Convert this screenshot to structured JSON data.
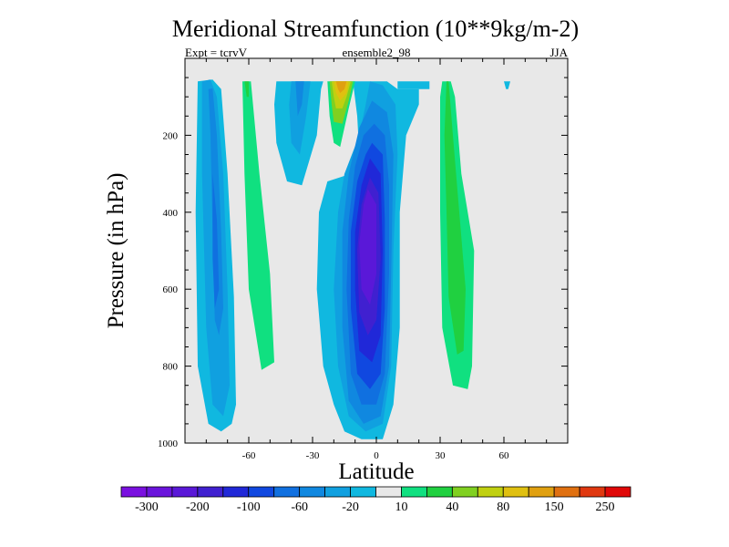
{
  "chart_data": {
    "type": "contour",
    "title": "Meridional Streamfunction (10**9kg/m-2)",
    "subtitle_left": "Expt = tcrvV",
    "subtitle_center": "ensemble2_98",
    "subtitle_right": "JJA",
    "xlabel": "Latitude",
    "ylabel": "Pressure (in hPa)",
    "xlim": [
      -90,
      90
    ],
    "ylim": [
      1000,
      0
    ],
    "x_ticks": [
      -60,
      -30,
      0,
      30,
      60
    ],
    "x_tick_labels": [
      "-60",
      "-30",
      "0",
      "30",
      "60"
    ],
    "y_ticks": [
      200,
      400,
      600,
      800,
      1000
    ],
    "y_tick_labels": [
      "200",
      "400",
      "600",
      "800",
      "1000"
    ],
    "background_color": "#e8e8e8",
    "colorbar": {
      "labels": [
        "-300",
        "-200",
        "-100",
        "-60",
        "-20",
        "10",
        "40",
        "80",
        "150",
        "250"
      ],
      "colors": [
        "#7a10e0",
        "#6a14dc",
        "#5a18d8",
        "#4020d0",
        "#2028d8",
        "#1048e0",
        "#1070e0",
        "#1088e0",
        "#10a0e0",
        "#10b8e0",
        "#e8e8e8",
        "#10e080",
        "#20d040",
        "#80d020",
        "#c0d010",
        "#e0c010",
        "#e0a010",
        "#e07010",
        "#e03810",
        "#e00808"
      ]
    },
    "cells": [
      {
        "name": "cell-south-outer",
        "level": -20,
        "color": "#10b8e0",
        "points": [
          [
            -84,
            60
          ],
          [
            -77,
            55
          ],
          [
            -73,
            80
          ],
          [
            -70,
            300
          ],
          [
            -67,
            620
          ],
          [
            -66,
            900
          ],
          [
            -68,
            950
          ],
          [
            -73,
            970
          ],
          [
            -79,
            950
          ],
          [
            -84,
            800
          ],
          [
            -85,
            400
          ]
        ]
      },
      {
        "name": "cell-south-mid",
        "level": -60,
        "color": "#10a0e0",
        "points": [
          [
            -82,
            60
          ],
          [
            -78,
            55
          ],
          [
            -75,
            100
          ],
          [
            -72,
            300
          ],
          [
            -70,
            600
          ],
          [
            -69,
            850
          ],
          [
            -72,
            930
          ],
          [
            -77,
            900
          ],
          [
            -80,
            700
          ],
          [
            -82,
            300
          ]
        ]
      },
      {
        "name": "cell-south-core",
        "level": -100,
        "color": "#1088e0",
        "points": [
          [
            -79,
            80
          ],
          [
            -77,
            78
          ],
          [
            -75,
            200
          ],
          [
            -73,
            450
          ],
          [
            -72,
            650
          ],
          [
            -74,
            720
          ],
          [
            -76,
            680
          ],
          [
            -77,
            450
          ],
          [
            -78,
            200
          ]
        ]
      },
      {
        "name": "cell-south-center",
        "level": -200,
        "color": "#1070e0",
        "points": [
          [
            -77,
            300
          ],
          [
            -75,
            420
          ],
          [
            -74,
            600
          ],
          [
            -76,
            650
          ],
          [
            -77,
            520
          ]
        ]
      },
      {
        "name": "cell-green-south",
        "level": 10,
        "color": "#10e080",
        "points": [
          [
            -63,
            60
          ],
          [
            -59,
            60
          ],
          [
            -55,
            300
          ],
          [
            -50,
            560
          ],
          [
            -48,
            790
          ],
          [
            -54,
            810
          ],
          [
            -60,
            600
          ],
          [
            -62,
            300
          ]
        ]
      },
      {
        "name": "cell-green-south-inner",
        "level": 40,
        "color": "#20d040",
        "points": [
          [
            -62,
            60
          ],
          [
            -60,
            60
          ],
          [
            -60,
            100
          ],
          [
            -61,
            100
          ]
        ]
      },
      {
        "name": "cell-mid-upper",
        "level": -20,
        "color": "#10b8e0",
        "points": [
          [
            -47,
            60
          ],
          [
            -25,
            60
          ],
          [
            -26,
            80
          ],
          [
            -28,
            200
          ],
          [
            -35,
            330
          ],
          [
            -42,
            320
          ],
          [
            -47,
            220
          ],
          [
            -48,
            120
          ]
        ]
      },
      {
        "name": "cell-mid-upper-core",
        "level": -60,
        "color": "#10a0e0",
        "points": [
          [
            -40,
            60
          ],
          [
            -31,
            60
          ],
          [
            -33,
            150
          ],
          [
            -36,
            250
          ],
          [
            -40,
            220
          ],
          [
            -41,
            120
          ]
        ]
      },
      {
        "name": "cell-mid-upper-core2",
        "level": -100,
        "color": "#1088e0",
        "points": [
          [
            -38,
            60
          ],
          [
            -34,
            60
          ],
          [
            -35,
            120
          ],
          [
            -37,
            150
          ]
        ]
      },
      {
        "name": "cell-hadley-outer",
        "level": -20,
        "color": "#10b8e0",
        "points": [
          [
            -11,
            60
          ],
          [
            5,
            60
          ],
          [
            10,
            80
          ],
          [
            20,
            80
          ],
          [
            20,
            120
          ],
          [
            14,
            200
          ],
          [
            11,
            400
          ],
          [
            11,
            700
          ],
          [
            8,
            900
          ],
          [
            3,
            990
          ],
          [
            -7,
            990
          ],
          [
            -15,
            970
          ],
          [
            -20,
            900
          ],
          [
            -25,
            800
          ],
          [
            -28,
            600
          ],
          [
            -27,
            400
          ],
          [
            -23,
            320
          ],
          [
            -12,
            300
          ],
          [
            -8,
            250
          ],
          [
            -9,
            150
          ]
        ]
      },
      {
        "name": "cell-hadley-2",
        "level": -60,
        "color": "#10a0e0",
        "points": [
          [
            -3,
            60
          ],
          [
            3,
            70
          ],
          [
            9,
            120
          ],
          [
            10,
            250
          ],
          [
            8,
            500
          ],
          [
            7,
            800
          ],
          [
            3,
            950
          ],
          [
            -5,
            970
          ],
          [
            -13,
            930
          ],
          [
            -18,
            800
          ],
          [
            -20,
            600
          ],
          [
            -18,
            400
          ],
          [
            -15,
            300
          ],
          [
            -8,
            200
          ],
          [
            -5,
            120
          ]
        ]
      },
      {
        "name": "cell-hadley-3",
        "level": -100,
        "color": "#1088e0",
        "points": [
          [
            -2,
            110
          ],
          [
            5,
            140
          ],
          [
            8,
            250
          ],
          [
            7,
            550
          ],
          [
            6,
            800
          ],
          [
            2,
            930
          ],
          [
            -6,
            950
          ],
          [
            -13,
            890
          ],
          [
            -16,
            700
          ],
          [
            -16,
            450
          ],
          [
            -13,
            300
          ],
          [
            -8,
            180
          ]
        ]
      },
      {
        "name": "cell-hadley-4",
        "level": -200,
        "color": "#1070e0",
        "points": [
          [
            -1,
            170
          ],
          [
            4,
            200
          ],
          [
            6,
            330
          ],
          [
            6,
            560
          ],
          [
            4,
            820
          ],
          [
            0,
            900
          ],
          [
            -7,
            900
          ],
          [
            -12,
            820
          ],
          [
            -14,
            600
          ],
          [
            -13,
            420
          ],
          [
            -10,
            280
          ],
          [
            -6,
            200
          ]
        ]
      },
      {
        "name": "cell-hadley-5",
        "level": -250,
        "color": "#1048e0",
        "points": [
          [
            -2,
            220
          ],
          [
            3,
            250
          ],
          [
            4,
            420
          ],
          [
            4,
            650
          ],
          [
            2,
            820
          ],
          [
            -3,
            860
          ],
          [
            -9,
            820
          ],
          [
            -12,
            650
          ],
          [
            -12,
            450
          ],
          [
            -9,
            320
          ],
          [
            -5,
            250
          ]
        ]
      },
      {
        "name": "cell-hadley-6",
        "level": -300,
        "color": "#2028d8",
        "points": [
          [
            -3,
            260
          ],
          [
            2,
            300
          ],
          [
            3,
            500
          ],
          [
            2,
            720
          ],
          [
            -2,
            790
          ],
          [
            -8,
            760
          ],
          [
            -10,
            600
          ],
          [
            -10,
            450
          ],
          [
            -7,
            330
          ]
        ]
      },
      {
        "name": "cell-hadley-7",
        "level": -350,
        "color": "#4020d0",
        "points": [
          [
            -3,
            310
          ],
          [
            1,
            350
          ],
          [
            2,
            520
          ],
          [
            0,
            680
          ],
          [
            -4,
            720
          ],
          [
            -8,
            660
          ],
          [
            -9,
            500
          ],
          [
            -7,
            380
          ]
        ]
      },
      {
        "name": "cell-hadley-core",
        "level": -400,
        "color": "#5a18d8",
        "points": [
          [
            -4,
            340
          ],
          [
            0,
            380
          ],
          [
            0,
            560
          ],
          [
            -3,
            640
          ],
          [
            -7,
            600
          ],
          [
            -8,
            480
          ],
          [
            -6,
            380
          ]
        ]
      },
      {
        "name": "cell-north-upper",
        "level": -20,
        "color": "#10b8e0",
        "points": [
          [
            10,
            60
          ],
          [
            25,
            60
          ],
          [
            25,
            80
          ],
          [
            20,
            80
          ],
          [
            10,
            80
          ]
        ]
      },
      {
        "name": "cell-green-north",
        "level": 10,
        "color": "#10e080",
        "points": [
          [
            31,
            60
          ],
          [
            35,
            60
          ],
          [
            37,
            100
          ],
          [
            40,
            300
          ],
          [
            46,
            500
          ],
          [
            45,
            800
          ],
          [
            43,
            860
          ],
          [
            36,
            850
          ],
          [
            31,
            700
          ],
          [
            30,
            400
          ],
          [
            30,
            100
          ]
        ]
      },
      {
        "name": "cell-green-north-inner",
        "level": 40,
        "color": "#20d040",
        "points": [
          [
            33,
            60
          ],
          [
            34,
            60
          ],
          [
            36,
            200
          ],
          [
            39,
            400
          ],
          [
            42,
            600
          ],
          [
            41,
            760
          ],
          [
            38,
            770
          ],
          [
            34,
            620
          ],
          [
            33,
            400
          ],
          [
            32,
            200
          ]
        ]
      },
      {
        "name": "cell-north-small",
        "level": -20,
        "color": "#10b8e0",
        "points": [
          [
            60,
            60
          ],
          [
            63,
            60
          ],
          [
            62,
            80
          ],
          [
            61,
            80
          ]
        ]
      },
      {
        "name": "cell-ferrel-upper-1",
        "level": 10,
        "color": "#10e080",
        "points": [
          [
            -23,
            60
          ],
          [
            -10,
            60
          ],
          [
            -13,
            130
          ],
          [
            -17,
            230
          ],
          [
            -20,
            220
          ],
          [
            -22,
            150
          ]
        ]
      },
      {
        "name": "cell-ferrel-upper-2",
        "level": 40,
        "color": "#80d020",
        "points": [
          [
            -22,
            60
          ],
          [
            -11,
            60
          ],
          [
            -13,
            110
          ],
          [
            -16,
            170
          ],
          [
            -20,
            165
          ],
          [
            -21,
            120
          ]
        ]
      },
      {
        "name": "cell-ferrel-upper-3",
        "level": 80,
        "color": "#c0d010",
        "points": [
          [
            -21,
            60
          ],
          [
            -12,
            60
          ],
          [
            -14,
            100
          ],
          [
            -16,
            130
          ],
          [
            -19,
            130
          ],
          [
            -20,
            100
          ]
        ]
      },
      {
        "name": "cell-ferrel-upper-4",
        "level": 150,
        "color": "#e0c010",
        "points": [
          [
            -20,
            60
          ],
          [
            -13,
            60
          ],
          [
            -14,
            90
          ],
          [
            -17,
            110
          ],
          [
            -19,
            90
          ]
        ]
      },
      {
        "name": "cell-ferrel-upper-core",
        "level": 250,
        "color": "#e0a010",
        "points": [
          [
            -19,
            60
          ],
          [
            -14,
            60
          ],
          [
            -15,
            80
          ],
          [
            -17,
            90
          ],
          [
            -18,
            80
          ]
        ]
      }
    ]
  }
}
